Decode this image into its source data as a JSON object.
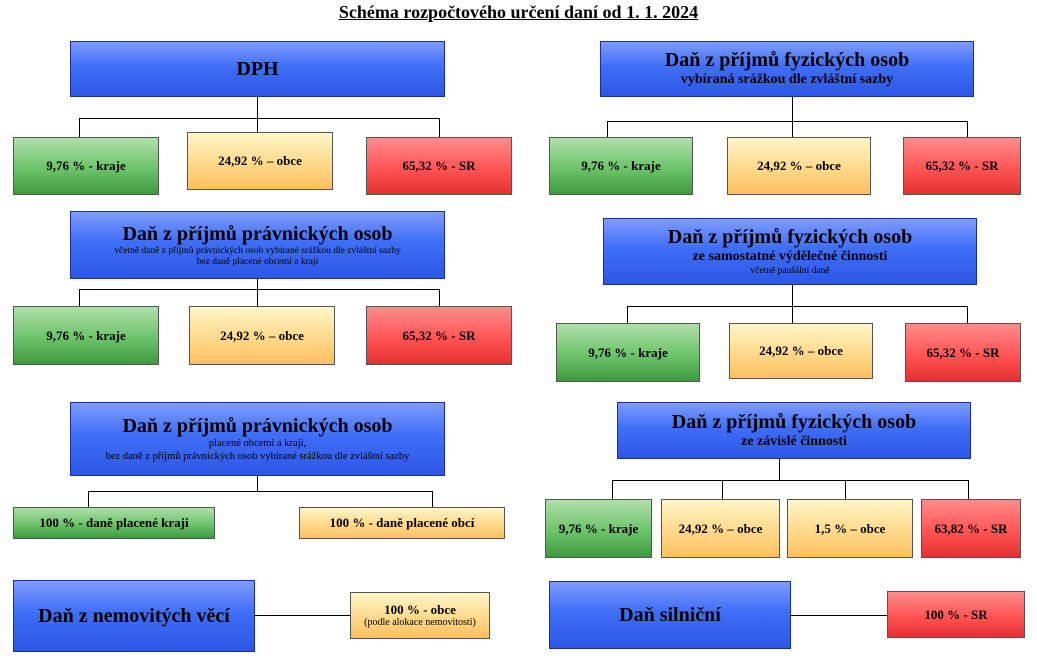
{
  "title": "Schéma rozpočtového určení daní od 1. 1. 2024",
  "dph": {
    "title": "DPH",
    "kraje": "9,76 % - kraje",
    "obce": "24,92 % – obce",
    "sr": "65,32 % - SR"
  },
  "dppo1": {
    "title": "Daň z příjmů právnických osob",
    "line1": "včetně daně z příjmů právnických osob vybírané srážkou dle zvláštní sazby",
    "line2": "bez daně placené obcemi a kraji",
    "kraje": "9,76 % - kraje",
    "obce": "24,92 % – obce",
    "sr": "65,32 % - SR"
  },
  "dppo2": {
    "title": "Daň z příjmů právnických osob",
    "line1": "placené obcemi a kraji,",
    "line2": "bez daně z příjmů právnických osob vybírané srážkou dle zvláštní sazby",
    "kraje": "100 % - daně placené kraji",
    "obce": "100 % - daně placené obcí"
  },
  "nemovitost": {
    "title": "Daň z nemovitých věcí",
    "obce": "100 % - obce",
    "note": "(podle alokace nemovitosti)"
  },
  "dpfo_srazka": {
    "title": "Daň z příjmů fyzických osob",
    "sub": "vybíraná srážkou dle zvláštní sazby",
    "kraje": "9,76 % - kraje",
    "obce": "24,92 % – obce",
    "sr": "65,32 % - SR"
  },
  "dpfo_samost": {
    "title": "Daň z příjmů fyzických osob",
    "sub": "ze samostatné výdělečné činnosti",
    "small": "včetně paušální daně",
    "kraje": "9,76 % - kraje",
    "obce": "24,92 % – obce",
    "sr": "65,32 % - SR"
  },
  "dpfo_zavisle": {
    "title": "Daň z příjmů fyzických osob",
    "sub": "ze závislé činnosti",
    "kraje": "9,76 % - kraje",
    "obce": "24,92 % – obce",
    "obce2": "1,5 % – obce",
    "sr": "63,82 % - SR"
  },
  "silnicni": {
    "title": "Daň silniční",
    "sr": "100 % - SR"
  },
  "colors": {
    "header_blue": "#3f6ef7",
    "kraje_green": "#6cc36a",
    "obce_yellow": "#ffd98a",
    "sr_red": "#ff5454"
  }
}
